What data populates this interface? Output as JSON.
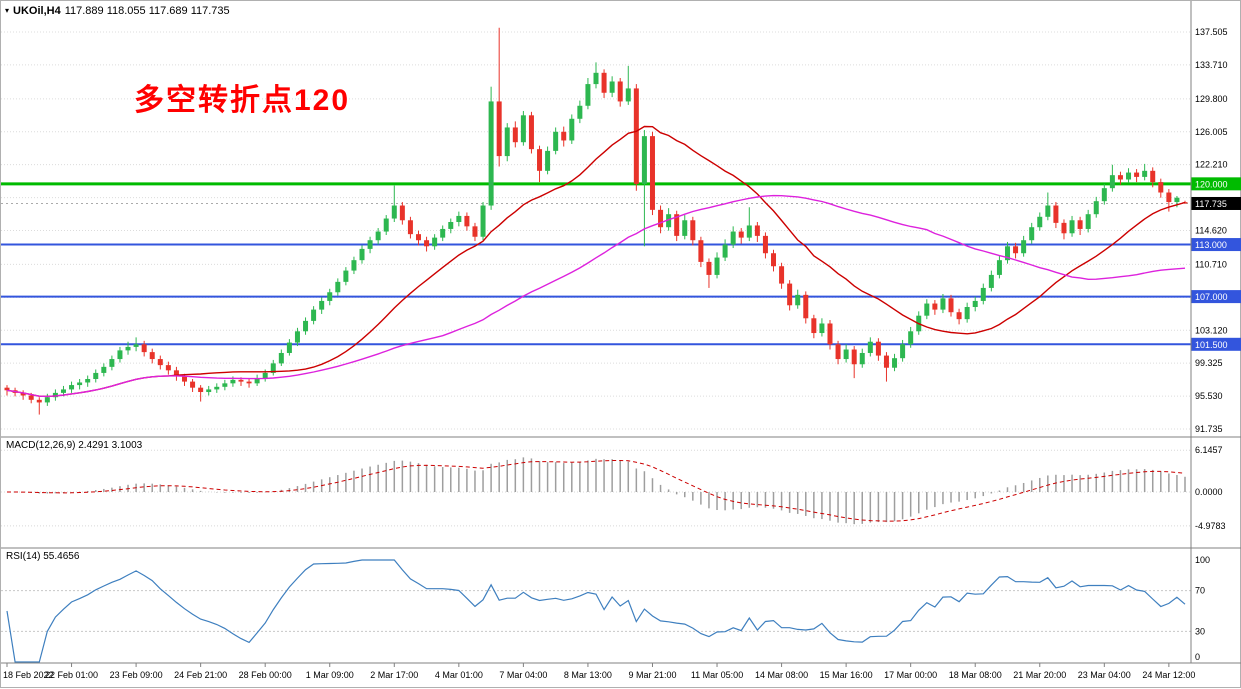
{
  "window": {
    "symbol": "UKOil,H4",
    "ohlc": "117.889 118.055 117.689 117.735"
  },
  "icons": {
    "symbol_marker": "▾"
  },
  "annotation": {
    "text": "多空转折点120",
    "color": "#FF0000"
  },
  "chart_data": {
    "type": "candlestick",
    "title": "UKOil,H4",
    "ohlc_display": {
      "open": "117.889",
      "high": "118.055",
      "low": "117.689",
      "close": "117.735"
    },
    "up_color": "#2DB750",
    "down_color": "#E8332A",
    "price_axis_ticks": [
      "137.505",
      "133.710",
      "129.800",
      "126.005",
      "122.210",
      "114.620",
      "110.710",
      "103.120",
      "99.325",
      "95.530",
      "91.735"
    ],
    "hidden_gridlines": [
      118.415,
      106.915
    ],
    "hlines": [
      {
        "value": 120.0,
        "label": "120.000",
        "color": "#00BB00",
        "width": 3
      },
      {
        "value": 113.0,
        "label": "113.000",
        "color": "#3355DD",
        "width": 2
      },
      {
        "value": 107.0,
        "label": "107.000",
        "color": "#3355DD",
        "width": 2
      },
      {
        "value": 101.5,
        "label": "101.500",
        "color": "#3355DD",
        "width": 2
      }
    ],
    "current_price": {
      "value": 117.735,
      "label": "117.735",
      "bg": "#000000"
    },
    "moving_averages": [
      {
        "name": "ma-red",
        "color": "#CC0000",
        "period": 21
      },
      {
        "name": "ma-magenta",
        "color": "#DD22DD",
        "period": 55
      }
    ],
    "time_labels": [
      "18 Feb 2022",
      "22 Feb 01:00",
      "23 Feb 09:00",
      "24 Feb 21:00",
      "28 Feb 00:00",
      "1 Mar 09:00",
      "2 Mar 17:00",
      "4 Mar 01:00",
      "7 Mar 04:00",
      "8 Mar 13:00",
      "9 Mar 21:00",
      "11 Mar 05:00",
      "14 Mar 08:00",
      "15 Mar 16:00",
      "17 Mar 00:00",
      "18 Mar 08:00",
      "21 Mar 20:00",
      "23 Mar 04:00",
      "24 Mar 12:00"
    ],
    "bars_per_label": 8,
    "macd": {
      "label": "MACD(12,26,9) 2.4291 3.1003",
      "params": [
        12,
        26,
        9
      ],
      "value": 2.4291,
      "signal": 3.1003,
      "axis_ticks": [
        "6.1457",
        "0.0000",
        "-4.9783"
      ],
      "hist_color": "#9E9E9E",
      "signal_color": "#CC0000"
    },
    "rsi": {
      "label": "RSI(14) 55.4656",
      "period": 14,
      "value": 55.4656,
      "axis_ticks": [
        100,
        70,
        30,
        0
      ],
      "levels": [
        70,
        30
      ],
      "color": "#3E7FBF"
    },
    "candles": [
      [
        96.5,
        96.8,
        95.6,
        96.2
      ],
      [
        96.2,
        96.5,
        95.5,
        95.9
      ],
      [
        95.9,
        96.2,
        95.1,
        95.6
      ],
      [
        95.6,
        95.9,
        94.7,
        95.1
      ],
      [
        95.1,
        95.4,
        93.4,
        94.8
      ],
      [
        94.8,
        95.8,
        94.4,
        95.4
      ],
      [
        95.4,
        96.3,
        95.0,
        95.9
      ],
      [
        95.9,
        96.7,
        95.5,
        96.3
      ],
      [
        96.3,
        97.2,
        95.9,
        96.8
      ],
      [
        96.8,
        97.5,
        96.3,
        97.1
      ],
      [
        97.1,
        97.9,
        96.6,
        97.5
      ],
      [
        97.5,
        98.6,
        97.1,
        98.2
      ],
      [
        98.2,
        99.3,
        97.8,
        98.9
      ],
      [
        98.9,
        100.2,
        98.5,
        99.8
      ],
      [
        99.8,
        101.2,
        99.4,
        100.8
      ],
      [
        100.8,
        101.8,
        100.3,
        101.2
      ],
      [
        101.2,
        102.3,
        100.7,
        101.5
      ],
      [
        101.5,
        101.9,
        100.1,
        100.6
      ],
      [
        100.6,
        101.0,
        99.3,
        99.8
      ],
      [
        99.8,
        100.2,
        98.6,
        99.1
      ],
      [
        99.1,
        99.5,
        98.0,
        98.5
      ],
      [
        98.5,
        98.9,
        97.3,
        97.8
      ],
      [
        97.8,
        98.1,
        96.7,
        97.2
      ],
      [
        97.2,
        97.5,
        96.0,
        96.5
      ],
      [
        96.5,
        96.8,
        94.9,
        96.0
      ],
      [
        96.0,
        96.7,
        95.6,
        96.3
      ],
      [
        96.3,
        97.0,
        95.9,
        96.6
      ],
      [
        96.6,
        97.4,
        96.2,
        97.0
      ],
      [
        97.0,
        97.8,
        96.6,
        97.4
      ],
      [
        97.4,
        97.7,
        96.7,
        97.2
      ],
      [
        97.2,
        97.5,
        96.5,
        97.0
      ],
      [
        97.0,
        98.0,
        96.7,
        97.6
      ],
      [
        97.6,
        98.6,
        97.2,
        98.2
      ],
      [
        98.2,
        99.7,
        97.9,
        99.3
      ],
      [
        99.3,
        100.9,
        99.0,
        100.5
      ],
      [
        100.5,
        102.1,
        100.2,
        101.7
      ],
      [
        101.7,
        103.4,
        101.3,
        103.0
      ],
      [
        103.0,
        104.6,
        102.6,
        104.2
      ],
      [
        104.2,
        105.9,
        103.8,
        105.5
      ],
      [
        105.5,
        106.9,
        105.0,
        106.5
      ],
      [
        106.5,
        107.9,
        106.0,
        107.5
      ],
      [
        107.5,
        109.1,
        107.1,
        108.7
      ],
      [
        108.7,
        110.4,
        108.3,
        110.0
      ],
      [
        110.0,
        111.6,
        109.6,
        111.2
      ],
      [
        111.2,
        112.9,
        110.8,
        112.5
      ],
      [
        112.5,
        113.9,
        112.0,
        113.5
      ],
      [
        113.5,
        114.9,
        113.0,
        114.5
      ],
      [
        114.5,
        116.4,
        114.1,
        116.0
      ],
      [
        116.0,
        119.8,
        115.6,
        117.5
      ],
      [
        117.5,
        117.9,
        115.3,
        115.8
      ],
      [
        115.8,
        116.2,
        113.7,
        114.2
      ],
      [
        114.2,
        114.6,
        112.9,
        113.5
      ],
      [
        113.5,
        113.9,
        112.2,
        112.8
      ],
      [
        112.8,
        114.2,
        112.4,
        113.8
      ],
      [
        113.8,
        115.2,
        113.4,
        114.8
      ],
      [
        114.8,
        116.0,
        114.3,
        115.6
      ],
      [
        115.6,
        116.8,
        115.1,
        116.3
      ],
      [
        116.3,
        116.7,
        114.6,
        115.1
      ],
      [
        115.1,
        115.5,
        113.4,
        113.9
      ],
      [
        113.9,
        117.9,
        113.5,
        117.5
      ],
      [
        117.5,
        131.2,
        117.0,
        129.5
      ],
      [
        129.5,
        138.0,
        122.0,
        123.2
      ],
      [
        123.2,
        127.0,
        122.6,
        126.5
      ],
      [
        126.5,
        127.2,
        124.2,
        124.8
      ],
      [
        124.8,
        128.4,
        124.4,
        127.9
      ],
      [
        127.9,
        128.3,
        123.5,
        124.0
      ],
      [
        124.0,
        124.4,
        120.2,
        121.5
      ],
      [
        121.5,
        124.3,
        121.1,
        123.8
      ],
      [
        123.8,
        126.5,
        123.4,
        126.0
      ],
      [
        126.0,
        126.6,
        124.3,
        125.0
      ],
      [
        125.0,
        128.0,
        124.6,
        127.5
      ],
      [
        127.5,
        129.6,
        127.0,
        129.0
      ],
      [
        129.0,
        132.2,
        128.6,
        131.5
      ],
      [
        131.5,
        134.0,
        131.0,
        132.8
      ],
      [
        132.8,
        133.2,
        129.9,
        130.5
      ],
      [
        130.5,
        132.4,
        130.0,
        131.8
      ],
      [
        131.8,
        132.2,
        128.9,
        129.5
      ],
      [
        129.5,
        133.6,
        129.1,
        131.0
      ],
      [
        131.0,
        131.5,
        119.2,
        120.0
      ],
      [
        120.0,
        126.2,
        112.8,
        125.5
      ],
      [
        125.5,
        126.0,
        116.4,
        117.0
      ],
      [
        117.0,
        117.5,
        114.3,
        115.0
      ],
      [
        115.0,
        117.2,
        114.6,
        116.5
      ],
      [
        116.5,
        116.9,
        113.4,
        114.0
      ],
      [
        114.0,
        116.4,
        113.6,
        115.8
      ],
      [
        115.8,
        116.2,
        112.9,
        113.5
      ],
      [
        113.5,
        113.9,
        110.4,
        111.0
      ],
      [
        111.0,
        111.4,
        108.0,
        109.5
      ],
      [
        109.5,
        112.1,
        109.1,
        111.5
      ],
      [
        111.5,
        113.6,
        111.1,
        113.0
      ],
      [
        113.0,
        115.1,
        112.6,
        114.5
      ],
      [
        114.5,
        114.9,
        113.1,
        113.8
      ],
      [
        113.8,
        117.3,
        113.4,
        115.2
      ],
      [
        115.2,
        115.6,
        113.3,
        114.0
      ],
      [
        114.0,
        114.4,
        111.4,
        112.0
      ],
      [
        112.0,
        112.4,
        109.9,
        110.5
      ],
      [
        110.5,
        110.9,
        107.9,
        108.5
      ],
      [
        108.5,
        108.9,
        105.4,
        106.0
      ],
      [
        106.0,
        107.8,
        105.6,
        107.2
      ],
      [
        107.2,
        107.6,
        103.9,
        104.5
      ],
      [
        104.5,
        104.9,
        102.2,
        102.8
      ],
      [
        102.8,
        104.5,
        102.4,
        103.9
      ],
      [
        103.9,
        104.3,
        100.9,
        101.5
      ],
      [
        101.5,
        101.9,
        99.2,
        99.8
      ],
      [
        99.8,
        101.5,
        99.4,
        100.9
      ],
      [
        100.9,
        101.3,
        97.6,
        99.2
      ],
      [
        99.2,
        101.0,
        98.8,
        100.5
      ],
      [
        100.5,
        102.3,
        100.1,
        101.8
      ],
      [
        101.8,
        102.2,
        99.6,
        100.2
      ],
      [
        100.2,
        100.6,
        97.2,
        98.8
      ],
      [
        98.8,
        100.4,
        98.4,
        99.9
      ],
      [
        99.9,
        102.0,
        99.5,
        101.5
      ],
      [
        101.5,
        103.5,
        101.1,
        103.0
      ],
      [
        103.0,
        105.3,
        102.6,
        104.8
      ],
      [
        104.8,
        106.7,
        104.4,
        106.2
      ],
      [
        106.2,
        106.6,
        104.9,
        105.5
      ],
      [
        105.5,
        107.3,
        105.1,
        106.8
      ],
      [
        106.8,
        107.2,
        104.7,
        105.2
      ],
      [
        105.2,
        105.6,
        103.8,
        104.4
      ],
      [
        104.4,
        106.3,
        104.0,
        105.8
      ],
      [
        105.8,
        107.0,
        105.3,
        106.5
      ],
      [
        106.5,
        108.5,
        106.1,
        108.0
      ],
      [
        108.0,
        110.0,
        107.6,
        109.5
      ],
      [
        109.5,
        111.7,
        109.1,
        111.2
      ],
      [
        111.2,
        113.3,
        110.8,
        112.8
      ],
      [
        112.8,
        113.2,
        111.4,
        112.0
      ],
      [
        112.0,
        114.0,
        111.6,
        113.5
      ],
      [
        113.5,
        115.5,
        113.1,
        115.0
      ],
      [
        115.0,
        116.7,
        114.6,
        116.2
      ],
      [
        116.2,
        119.0,
        115.8,
        117.5
      ],
      [
        117.5,
        117.9,
        114.9,
        115.5
      ],
      [
        115.5,
        115.9,
        113.6,
        114.3
      ],
      [
        114.3,
        116.3,
        113.9,
        115.8
      ],
      [
        115.8,
        116.2,
        114.1,
        114.8
      ],
      [
        114.8,
        117.0,
        114.4,
        116.5
      ],
      [
        116.5,
        118.5,
        116.1,
        118.0
      ],
      [
        118.0,
        120.0,
        117.6,
        119.5
      ],
      [
        119.5,
        122.2,
        119.1,
        121.0
      ],
      [
        121.0,
        121.4,
        119.9,
        120.5
      ],
      [
        120.5,
        121.8,
        120.1,
        121.3
      ],
      [
        121.3,
        121.7,
        120.2,
        120.8
      ],
      [
        120.8,
        122.3,
        120.4,
        121.5
      ],
      [
        121.5,
        121.9,
        119.6,
        120.2
      ],
      [
        120.2,
        120.6,
        118.4,
        119.0
      ],
      [
        119.0,
        119.4,
        116.8,
        117.9
      ],
      [
        117.9,
        118.6,
        117.3,
        118.4
      ],
      [
        117.889,
        118.055,
        117.689,
        117.735
      ]
    ]
  }
}
